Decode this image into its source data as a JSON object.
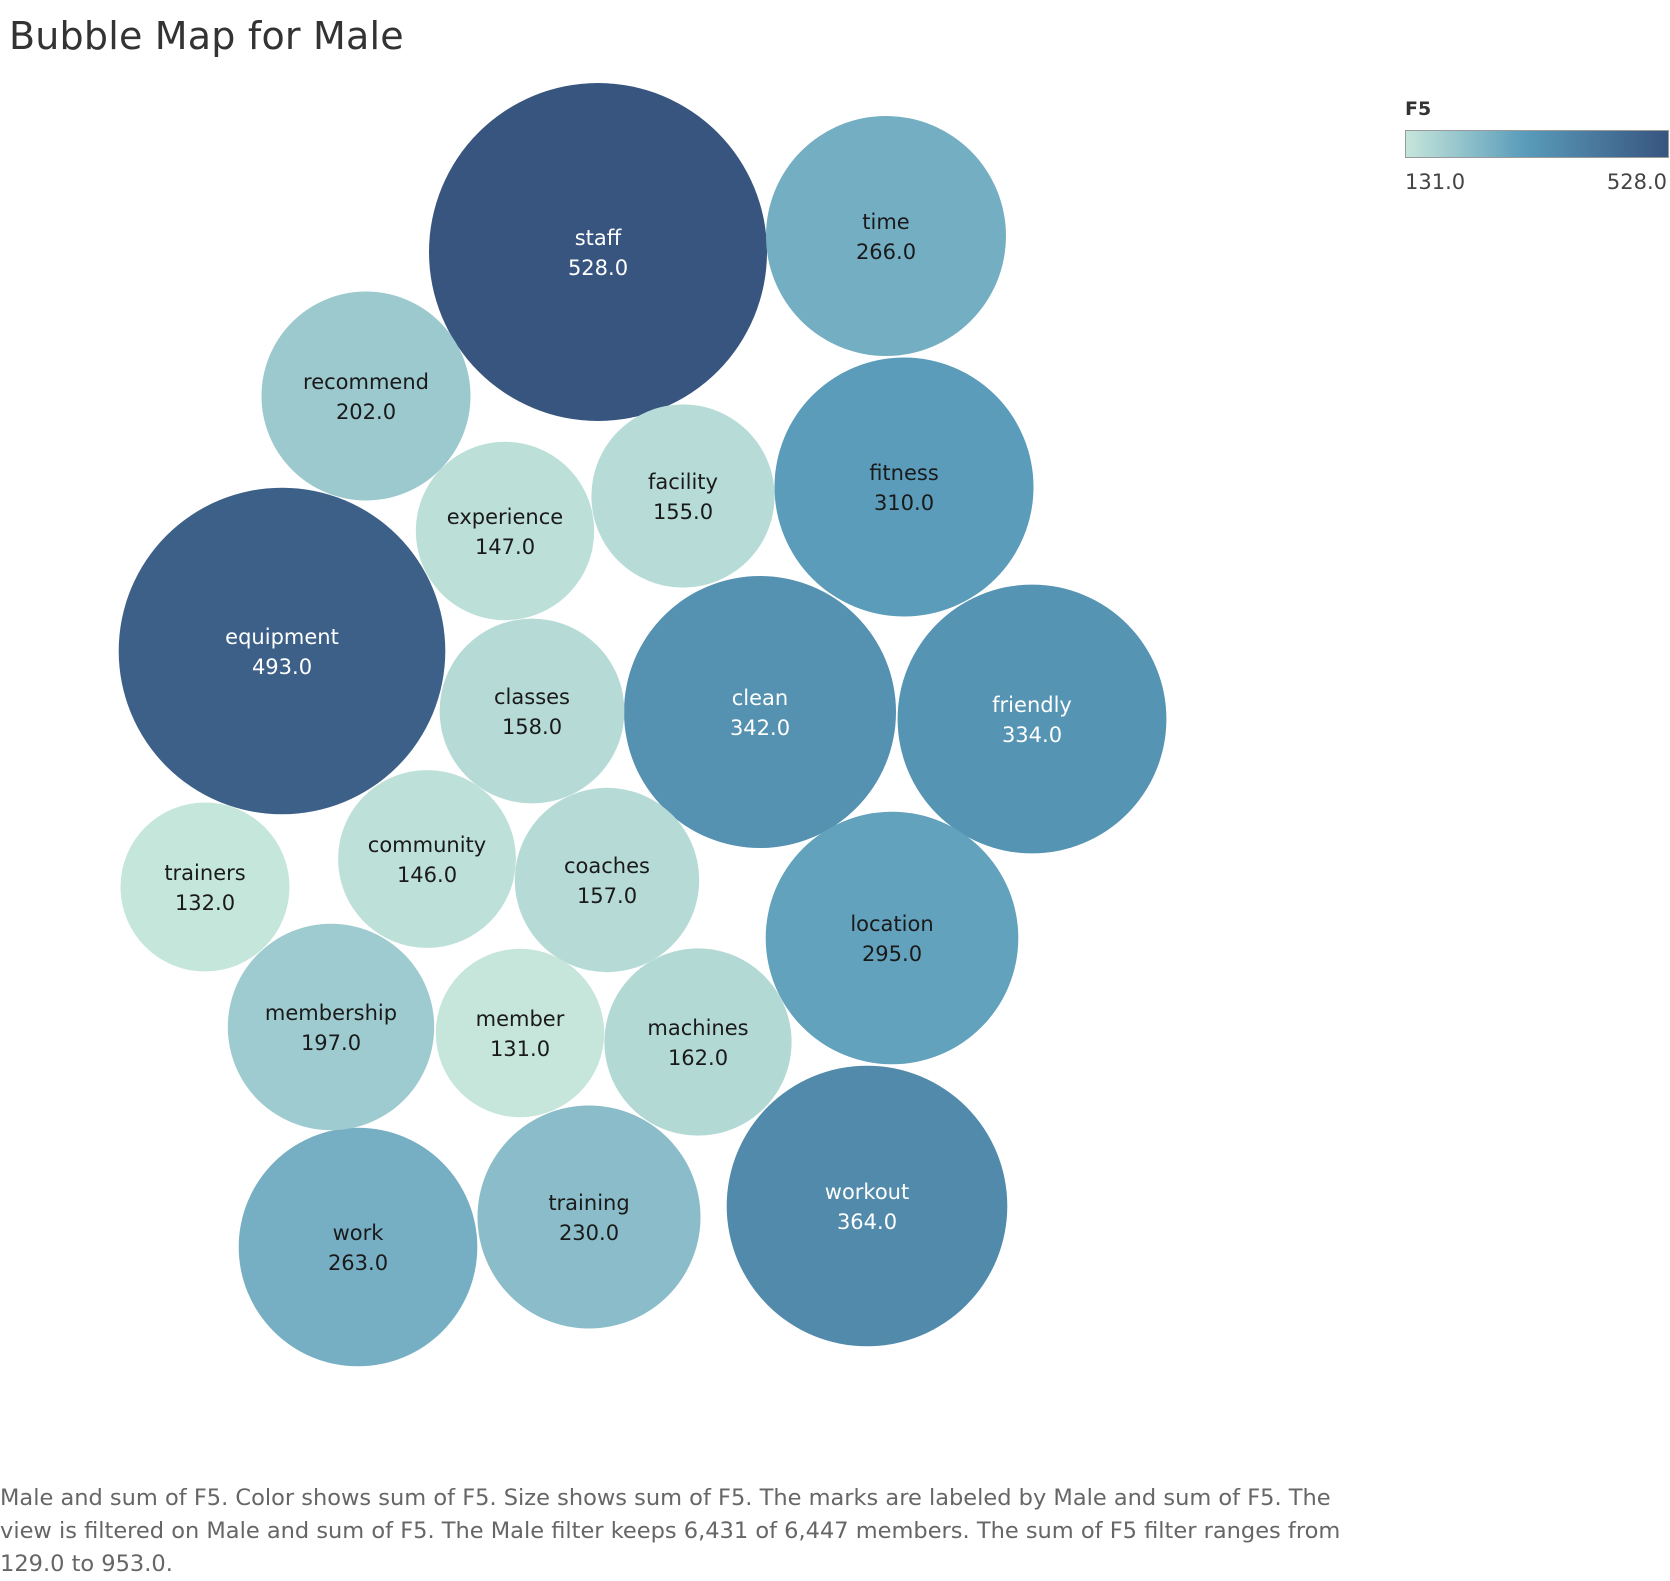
{
  "chart_data": {
    "type": "bubble",
    "title": "Bubble Map for Male",
    "legend": {
      "title": "F5",
      "min_label": "131.0",
      "max_label": "528.0",
      "min": 131,
      "max": 528,
      "color_low": "#c6e6db",
      "color_mid": "#5a9cba",
      "color_high": "#37557f",
      "placement": "top-right"
    },
    "bubbles": [
      {
        "label": "staff",
        "value": 528.0
      },
      {
        "label": "equipment",
        "value": 493.0
      },
      {
        "label": "workout",
        "value": 364.0
      },
      {
        "label": "clean",
        "value": 342.0
      },
      {
        "label": "friendly",
        "value": 334.0
      },
      {
        "label": "fitness",
        "value": 310.0
      },
      {
        "label": "location",
        "value": 295.0
      },
      {
        "label": "time",
        "value": 266.0
      },
      {
        "label": "work",
        "value": 263.0
      },
      {
        "label": "training",
        "value": 230.0
      },
      {
        "label": "recommend",
        "value": 202.0
      },
      {
        "label": "membership",
        "value": 197.0
      },
      {
        "label": "machines",
        "value": 162.0
      },
      {
        "label": "classes",
        "value": 158.0
      },
      {
        "label": "coaches",
        "value": 157.0
      },
      {
        "label": "facility",
        "value": 155.0
      },
      {
        "label": "experience",
        "value": 147.0
      },
      {
        "label": "community",
        "value": 146.0
      },
      {
        "label": "trainers",
        "value": 132.0
      },
      {
        "label": "member",
        "value": 131.0
      }
    ]
  },
  "caption": "Male and sum of F5.  Color shows sum of F5.  Size shows sum of F5.  The marks are labeled by Male and sum of F5. The view is filtered on Male and sum of F5. The Male filter keeps 6,431 of 6,447 members. The sum of F5 filter ranges from 129.0 to 953.0."
}
